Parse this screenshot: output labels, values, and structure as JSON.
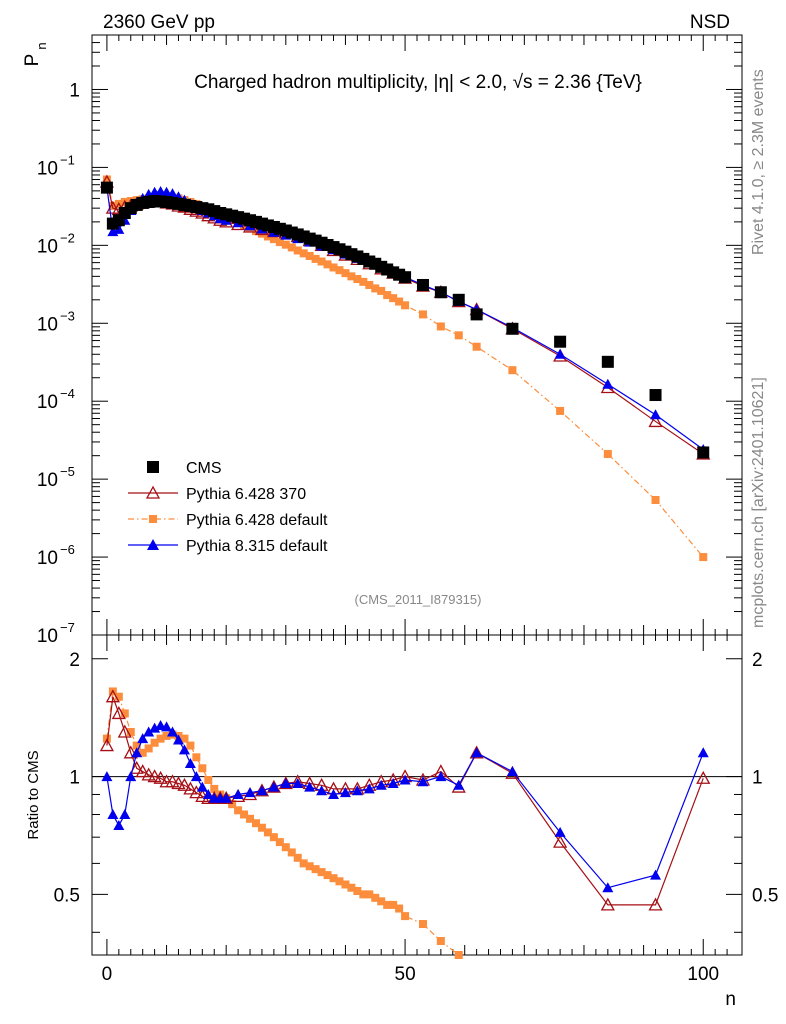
{
  "header": {
    "left": "2360 GeV pp",
    "right": "NSD"
  },
  "watermark": {
    "rivet": "Rivet 4.1.0, ≥ 2.3M events",
    "mcplots": "mcplots.cern.ch [arXiv:2401.10621]",
    "analysis": "(CMS_2011_I879315)"
  },
  "colors": {
    "cms": "#000000",
    "py6_370": "#a50f15",
    "py6_default": "#fc8d3c",
    "py8": "#0000ee"
  },
  "chart_data": [
    {
      "type": "scatter",
      "title": "Charged hadron multiplicity, |η| < 2.0, √s = 2.36 {TeV}",
      "ylabel": "P_n",
      "ylabel_main": "P",
      "ylabel_sub": "n",
      "yscale": "log",
      "ylim": [
        1e-07,
        5
      ],
      "xlim": [
        -2.5,
        106.5
      ],
      "y_ticks": [
        {
          "value": 1,
          "label": "1"
        },
        {
          "value": 0.1,
          "base": "10",
          "exp": "−1"
        },
        {
          "value": 0.01,
          "base": "10",
          "exp": "−2"
        },
        {
          "value": 0.001,
          "base": "10",
          "exp": "−3"
        },
        {
          "value": 0.0001,
          "base": "10",
          "exp": "−4"
        },
        {
          "value": 1e-05,
          "base": "10",
          "exp": "−5"
        },
        {
          "value": 1e-06,
          "base": "10",
          "exp": "−6"
        },
        {
          "value": 1e-07,
          "base": "10",
          "exp": "−7"
        }
      ],
      "legend_position": "bottom-left",
      "series": [
        {
          "name": "CMS",
          "style": "data",
          "x": [
            0,
            1,
            2,
            3,
            4,
            5,
            6,
            7,
            8,
            9,
            10,
            11,
            12,
            13,
            14,
            15,
            16,
            17,
            18,
            19,
            20,
            21,
            22,
            23,
            24,
            25,
            26,
            27,
            28,
            29,
            30,
            31,
            32,
            33,
            34,
            35,
            36,
            37,
            38,
            39,
            40,
            41,
            42,
            43,
            44,
            45,
            46,
            47,
            48,
            49,
            50,
            53,
            56,
            59,
            62,
            68,
            76,
            84,
            92,
            100
          ],
          "values": [
            0.055,
            0.019,
            0.021,
            0.026,
            0.03,
            0.033,
            0.035,
            0.036,
            0.037,
            0.0365,
            0.036,
            0.035,
            0.034,
            0.033,
            0.032,
            0.031,
            0.03,
            0.029,
            0.0275,
            0.026,
            0.025,
            0.024,
            0.023,
            0.022,
            0.021,
            0.02,
            0.019,
            0.018,
            0.0172,
            0.0163,
            0.0155,
            0.0146,
            0.0138,
            0.013,
            0.0122,
            0.0115,
            0.0108,
            0.0101,
            0.0095,
            0.0089,
            0.0083,
            0.0077,
            0.0072,
            0.0067,
            0.0062,
            0.0058,
            0.0053,
            0.0049,
            0.0045,
            0.0042,
            0.0039,
            0.0031,
            0.0025,
            0.002,
            0.0013,
            0.00085,
            0.00058,
            0.00032,
            0.00012,
            2.2e-05
          ]
        },
        {
          "name": "Pythia 6.428 370",
          "style": "open-triangle",
          "x": [
            0,
            1,
            2,
            3,
            4,
            5,
            6,
            7,
            8,
            9,
            10,
            11,
            12,
            13,
            14,
            15,
            16,
            17,
            18,
            19,
            20,
            22,
            24,
            26,
            28,
            30,
            32,
            34,
            36,
            38,
            40,
            42,
            44,
            46,
            48,
            50,
            53,
            56,
            59,
            62,
            68,
            76,
            84,
            92,
            100
          ],
          "values": [
            0.065,
            0.03,
            0.029,
            0.031,
            0.032,
            0.034,
            0.035,
            0.036,
            0.0365,
            0.0362,
            0.035,
            0.034,
            0.032,
            0.031,
            0.029,
            0.0275,
            0.026,
            0.024,
            0.0225,
            0.021,
            0.02,
            0.0185,
            0.0172,
            0.016,
            0.015,
            0.0145,
            0.013,
            0.0115,
            0.01,
            0.0086,
            0.0075,
            0.0066,
            0.0058,
            0.005,
            0.0044,
            0.0038,
            0.003,
            0.0025,
            0.0019,
            0.0015,
            0.00085,
            0.00038,
            0.00015,
            5.5e-05,
            2.1e-05
          ]
        },
        {
          "name": "Pythia 6.428 default",
          "style": "dashdot-square",
          "x": [
            0,
            1,
            2,
            3,
            4,
            5,
            6,
            7,
            8,
            9,
            10,
            11,
            12,
            13,
            14,
            15,
            16,
            17,
            18,
            19,
            20,
            21,
            22,
            23,
            24,
            25,
            26,
            27,
            28,
            29,
            30,
            31,
            32,
            33,
            34,
            35,
            36,
            37,
            38,
            39,
            40,
            41,
            42,
            43,
            44,
            45,
            46,
            47,
            48,
            49,
            50,
            53,
            56,
            59,
            62,
            68,
            76,
            84,
            92,
            100
          ],
          "values": [
            0.07,
            0.032,
            0.034,
            0.036,
            0.037,
            0.038,
            0.039,
            0.04,
            0.041,
            0.042,
            0.042,
            0.041,
            0.04,
            0.038,
            0.036,
            0.034,
            0.031,
            0.029,
            0.027,
            0.025,
            0.023,
            0.0212,
            0.0195,
            0.018,
            0.0166,
            0.0152,
            0.0141,
            0.013,
            0.012,
            0.011,
            0.0102,
            0.0094,
            0.0086,
            0.0079,
            0.0073,
            0.0067,
            0.0062,
            0.0057,
            0.0052,
            0.0048,
            0.0044,
            0.004,
            0.0037,
            0.0034,
            0.0031,
            0.0028,
            0.0026,
            0.0023,
            0.0021,
            0.0019,
            0.0017,
            0.0013,
            0.00091,
            0.0007,
            0.0005,
            0.00025,
            7.5e-05,
            2.1e-05,
            5.4e-06,
            1e-06
          ]
        },
        {
          "name": "Pythia 8.315 default",
          "style": "filled-triangle",
          "x": [
            0,
            1,
            2,
            3,
            4,
            5,
            6,
            7,
            8,
            9,
            10,
            11,
            12,
            13,
            14,
            15,
            16,
            17,
            18,
            19,
            20,
            22,
            24,
            26,
            28,
            30,
            32,
            34,
            36,
            38,
            40,
            42,
            44,
            46,
            48,
            50,
            53,
            56,
            59,
            62,
            68,
            76,
            84,
            92,
            100
          ],
          "values": [
            0.055,
            0.015,
            0.016,
            0.021,
            0.028,
            0.035,
            0.04,
            0.045,
            0.048,
            0.049,
            0.048,
            0.046,
            0.042,
            0.038,
            0.034,
            0.031,
            0.028,
            0.026,
            0.024,
            0.022,
            0.021,
            0.0195,
            0.0178,
            0.0162,
            0.0147,
            0.0135,
            0.0122,
            0.011,
            0.0098,
            0.0088,
            0.0077,
            0.0068,
            0.006,
            0.0052,
            0.0046,
            0.0039,
            0.0031,
            0.0025,
            0.0019,
            0.0015,
            0.00088,
            0.0004,
            0.000165,
            6.7e-05,
            2.4e-05
          ]
        }
      ]
    },
    {
      "type": "line",
      "ylabel": "Ratio to CMS",
      "xlabel": "n",
      "ylim": [
        0.35,
        2.3
      ],
      "xlim": [
        -2.5,
        106.5
      ],
      "x_ticks": [
        0,
        50,
        100
      ],
      "y_ticks": [
        0.5,
        1,
        2
      ],
      "reference_line": 1,
      "series": [
        {
          "name": "Pythia 6.428 370",
          "x": [
            0,
            1,
            2,
            3,
            4,
            5,
            6,
            7,
            8,
            9,
            10,
            11,
            12,
            13,
            14,
            15,
            16,
            17,
            18,
            19,
            20,
            22,
            24,
            26,
            28,
            30,
            32,
            34,
            36,
            38,
            40,
            42,
            44,
            46,
            48,
            50,
            53,
            56,
            59,
            62,
            68,
            76,
            84,
            92,
            100
          ],
          "values": [
            1.2,
            1.6,
            1.45,
            1.3,
            1.15,
            1.05,
            1.03,
            1.01,
            1.0,
            0.99,
            0.97,
            0.97,
            0.96,
            0.95,
            0.93,
            0.91,
            0.89,
            0.88,
            0.88,
            0.88,
            0.88,
            0.89,
            0.9,
            0.92,
            0.94,
            0.96,
            0.97,
            0.96,
            0.95,
            0.93,
            0.93,
            0.93,
            0.95,
            0.97,
            0.98,
            1.0,
            0.98,
            1.03,
            0.94,
            1.15,
            1.02,
            0.68,
            0.47,
            0.47,
            0.99
          ]
        },
        {
          "name": "Pythia 6.428 default",
          "x": [
            0,
            1,
            2,
            3,
            4,
            5,
            6,
            7,
            8,
            9,
            10,
            11,
            12,
            13,
            14,
            15,
            16,
            17,
            18,
            19,
            20,
            21,
            22,
            23,
            24,
            25,
            26,
            27,
            28,
            29,
            30,
            31,
            32,
            33,
            34,
            35,
            36,
            37,
            38,
            39,
            40,
            41,
            42,
            43,
            44,
            45,
            46,
            47,
            48,
            49,
            50,
            53,
            56,
            59
          ],
          "values": [
            1.25,
            1.65,
            1.6,
            1.45,
            1.3,
            1.2,
            1.15,
            1.18,
            1.22,
            1.25,
            1.27,
            1.28,
            1.27,
            1.25,
            1.2,
            1.12,
            1.05,
            0.98,
            0.93,
            0.9,
            0.88,
            0.85,
            0.82,
            0.8,
            0.78,
            0.76,
            0.74,
            0.72,
            0.7,
            0.68,
            0.66,
            0.64,
            0.62,
            0.6,
            0.59,
            0.58,
            0.57,
            0.56,
            0.55,
            0.54,
            0.53,
            0.52,
            0.51,
            0.5,
            0.5,
            0.49,
            0.48,
            0.47,
            0.47,
            0.46,
            0.44,
            0.42,
            0.38,
            0.35
          ]
        },
        {
          "name": "Pythia 8.315 default",
          "x": [
            0,
            1,
            2,
            3,
            4,
            5,
            6,
            7,
            8,
            9,
            10,
            11,
            12,
            13,
            14,
            15,
            16,
            17,
            18,
            19,
            20,
            22,
            24,
            26,
            28,
            30,
            32,
            34,
            36,
            38,
            40,
            42,
            44,
            46,
            48,
            50,
            53,
            56,
            59,
            62,
            68,
            76,
            84,
            92,
            100
          ],
          "values": [
            1.0,
            0.8,
            0.75,
            0.8,
            1.0,
            1.15,
            1.25,
            1.3,
            1.33,
            1.35,
            1.34,
            1.3,
            1.24,
            1.17,
            1.08,
            1.0,
            0.94,
            0.9,
            0.88,
            0.88,
            0.88,
            0.9,
            0.91,
            0.92,
            0.94,
            0.96,
            0.96,
            0.94,
            0.92,
            0.9,
            0.91,
            0.92,
            0.93,
            0.95,
            0.96,
            0.98,
            0.97,
            1.0,
            0.95,
            1.15,
            1.03,
            0.72,
            0.52,
            0.56,
            1.15
          ]
        }
      ]
    }
  ]
}
